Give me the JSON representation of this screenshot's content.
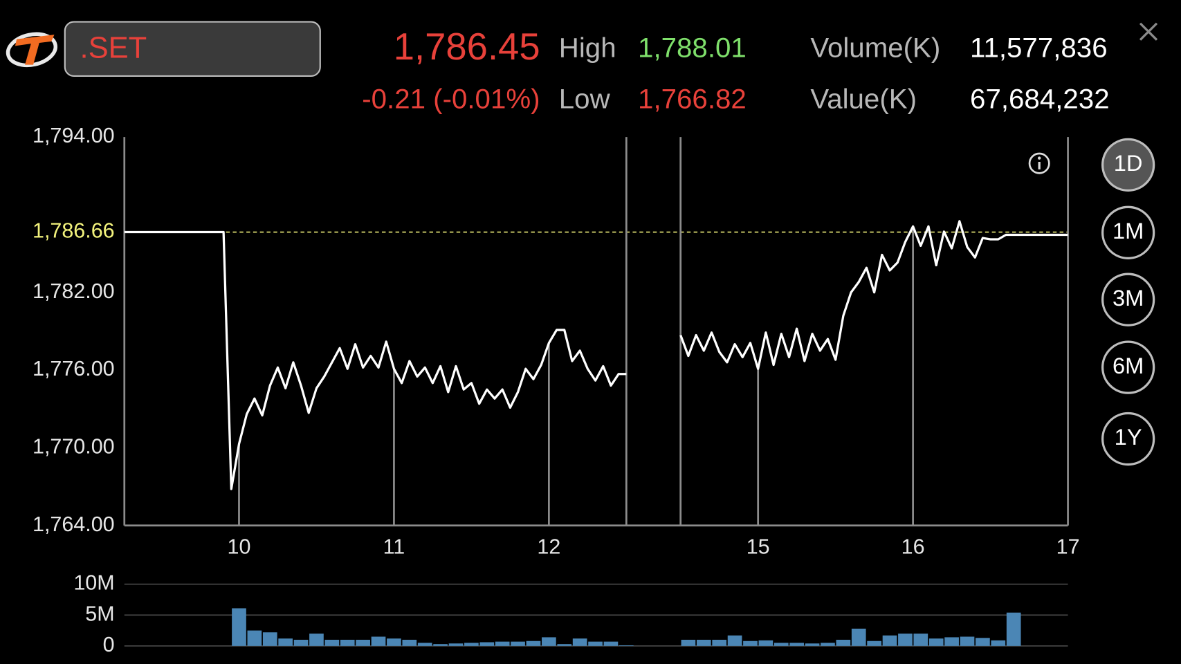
{
  "header": {
    "symbol": ".SET",
    "last": "1,786.45",
    "change": "-0.21 (-0.01%)",
    "high_label": "High",
    "high": "1,788.01",
    "low_label": "Low",
    "low": "1,766.82",
    "volume_label": "Volume(K)",
    "volume": "11,577,836",
    "value_label": "Value(K)",
    "value": "67,684,232"
  },
  "periods": {
    "options": [
      "1D",
      "1M",
      "3M",
      "6M",
      "1Y"
    ],
    "selected": 0
  },
  "chart_data": [
    {
      "type": "line",
      "x": [
        9.26,
        9.9,
        9.95,
        10.0,
        10.05,
        10.1,
        10.15,
        10.2,
        10.25,
        10.3,
        10.35,
        10.4,
        10.45,
        10.5,
        10.55,
        10.6,
        10.65,
        10.7,
        10.75,
        10.8,
        10.85,
        10.9,
        10.95,
        11.0,
        11.05,
        11.1,
        11.15,
        11.2,
        11.25,
        11.3,
        11.35,
        11.4,
        11.45,
        11.5,
        11.55,
        11.6,
        11.65,
        11.7,
        11.75,
        11.8,
        11.85,
        11.9,
        11.95,
        12.0,
        12.05,
        12.1,
        12.15,
        12.2,
        12.25,
        12.3,
        12.35,
        12.4,
        12.45,
        12.5,
        13.5,
        14.5,
        14.55,
        14.6,
        14.65,
        14.7,
        14.75,
        14.8,
        14.85,
        14.9,
        14.95,
        15.0,
        15.05,
        15.1,
        15.15,
        15.2,
        15.25,
        15.3,
        15.35,
        15.4,
        15.45,
        15.5,
        15.55,
        15.6,
        15.65,
        15.7,
        15.75,
        15.8,
        15.85,
        15.9,
        15.95,
        16.0,
        16.05,
        16.1,
        16.15,
        16.2,
        16.25,
        16.3,
        16.35,
        16.4,
        16.45,
        16.5,
        16.55,
        16.6,
        17.0
      ],
      "series": [
        {
          "color": "#ffffff",
          "values": [
            1786.66,
            1786.66,
            1766.82,
            1770.3,
            1772.6,
            1773.8,
            1772.5,
            1774.8,
            1776.2,
            1774.6,
            1776.6,
            1774.8,
            1772.7,
            1774.6,
            1775.5,
            1776.6,
            1777.7,
            1776.1,
            1778.0,
            1776.2,
            1777.1,
            1776.2,
            1778.2,
            1776.1,
            1775.0,
            1776.7,
            1775.5,
            1776.2,
            1775.0,
            1776.3,
            1774.3,
            1776.3,
            1774.5,
            1775.0,
            1773.4,
            1774.5,
            1773.8,
            1774.5,
            1773.1,
            1774.3,
            1776.1,
            1775.3,
            1776.4,
            1778.1,
            1779.1,
            1779.1,
            1776.7,
            1777.5,
            1776.1,
            1775.2,
            1776.3,
            1774.8,
            1775.7,
            1775.7,
            null,
            1778.7,
            1777.1,
            1778.7,
            1777.5,
            1778.9,
            1777.4,
            1776.6,
            1778.0,
            1777.0,
            1778.1,
            1776.1,
            1778.9,
            1776.4,
            1778.8,
            1777.0,
            1779.2,
            1776.7,
            1778.8,
            1777.5,
            1778.4,
            1776.8,
            1780.2,
            1782.0,
            1782.8,
            1783.9,
            1782.0,
            1784.9,
            1783.7,
            1784.3,
            1785.9,
            1787.1,
            1785.6,
            1787.1,
            1784.1,
            1786.7,
            1785.4,
            1787.5,
            1785.5,
            1784.7,
            1786.2,
            1786.1,
            1786.1,
            1786.45,
            1786.45
          ]
        }
      ],
      "xlim": [
        9.26,
        17
      ],
      "xticks": [
        10,
        11,
        12,
        15,
        16,
        17
      ],
      "x_breaks": [
        [
          12.5,
          14.5
        ]
      ],
      "ylim": [
        1764,
        1794
      ],
      "yticks": [
        {
          "value": 1794,
          "label": "1,794.00"
        },
        {
          "value": 1782,
          "label": "1,782.00"
        },
        {
          "value": 1776,
          "label": "1,776.00"
        },
        {
          "value": 1770,
          "label": "1,770.00"
        },
        {
          "value": 1764,
          "label": "1,764.00"
        }
      ],
      "reference_line": {
        "value": 1786.66,
        "label": "1,786.66",
        "color": "#f2f27c"
      }
    },
    {
      "type": "bar",
      "x": [
        10.0,
        10.1,
        10.2,
        10.3,
        10.4,
        10.5,
        10.6,
        10.7,
        10.8,
        10.9,
        11.0,
        11.1,
        11.2,
        11.3,
        11.4,
        11.5,
        11.6,
        11.7,
        11.8,
        11.9,
        12.0,
        12.1,
        12.2,
        12.3,
        12.4,
        12.5,
        14.55,
        14.65,
        14.75,
        14.85,
        14.95,
        15.05,
        15.15,
        15.25,
        15.35,
        15.45,
        15.55,
        15.65,
        15.75,
        15.85,
        15.95,
        16.05,
        16.15,
        16.25,
        16.35,
        16.45,
        16.55,
        16.65
      ],
      "values": [
        6100000,
        2500000,
        2200000,
        1200000,
        1000000,
        2000000,
        1000000,
        1000000,
        1000000,
        1500000,
        1200000,
        1000000,
        500000,
        300000,
        400000,
        500000,
        600000,
        700000,
        700000,
        800000,
        1400000,
        300000,
        1200000,
        700000,
        700000,
        100000,
        1000000,
        1000000,
        1000000,
        1700000,
        800000,
        900000,
        500000,
        500000,
        400000,
        500000,
        1000000,
        2800000,
        800000,
        1700000,
        2000000,
        2000000,
        1200000,
        1400000,
        1500000,
        1300000,
        900000,
        5400000
      ],
      "color": "#4b86b5",
      "xlim": [
        9.26,
        17
      ],
      "x_breaks": [
        [
          12.5,
          14.5
        ]
      ],
      "ylim": [
        0,
        10000000
      ],
      "yticks": [
        0,
        {
          "value": 5000000,
          "label": "5M"
        },
        {
          "value": 10000000,
          "label": "10M"
        }
      ],
      "grid": true
    }
  ]
}
